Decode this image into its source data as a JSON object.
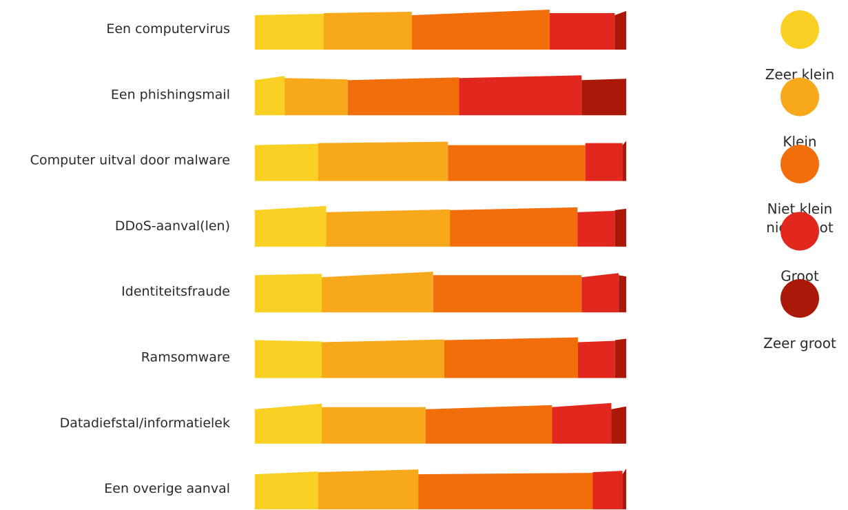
{
  "chart_data": {
    "type": "bar",
    "stacked": true,
    "orientation": "horizontal",
    "normalized_percent": true,
    "categories": [
      "Een computervirus",
      "Een phishingsmail",
      "Computer uitval door malware",
      "DDoS-aanval(len)",
      "Identiteitsfraude",
      "Ramsomware",
      "Datadiefstal/informatielek",
      "Een overige aanval"
    ],
    "series": [
      {
        "name": "Zeer klein",
        "color": "#FAD024",
        "values": [
          18,
          8,
          17,
          19,
          18,
          18,
          18,
          17
        ]
      },
      {
        "name": "Klein",
        "color": "#F8A81B",
        "values": [
          23,
          17,
          35,
          33,
          30,
          33,
          28,
          27
        ]
      },
      {
        "name": "Niet klein niet groot",
        "color": "#F26E0A",
        "values": [
          36,
          30,
          37,
          34,
          40,
          36,
          34,
          47
        ]
      },
      {
        "name": "Groot",
        "color": "#E2281E",
        "values": [
          17,
          33,
          10,
          10,
          10,
          10,
          16,
          8
        ]
      },
      {
        "name": "Zeer groot",
        "color": "#AA1807",
        "values": [
          3,
          12,
          1,
          3,
          2,
          3,
          4,
          1
        ]
      }
    ],
    "legend": {
      "placement": "right",
      "labels": [
        [
          "Zeer klein"
        ],
        [
          "Klein"
        ],
        [
          "Niet klein",
          "niet groot"
        ],
        [
          "Groot"
        ],
        [
          "Zeer groot"
        ]
      ]
    },
    "title": "",
    "xlabel": "",
    "ylabel": ""
  }
}
